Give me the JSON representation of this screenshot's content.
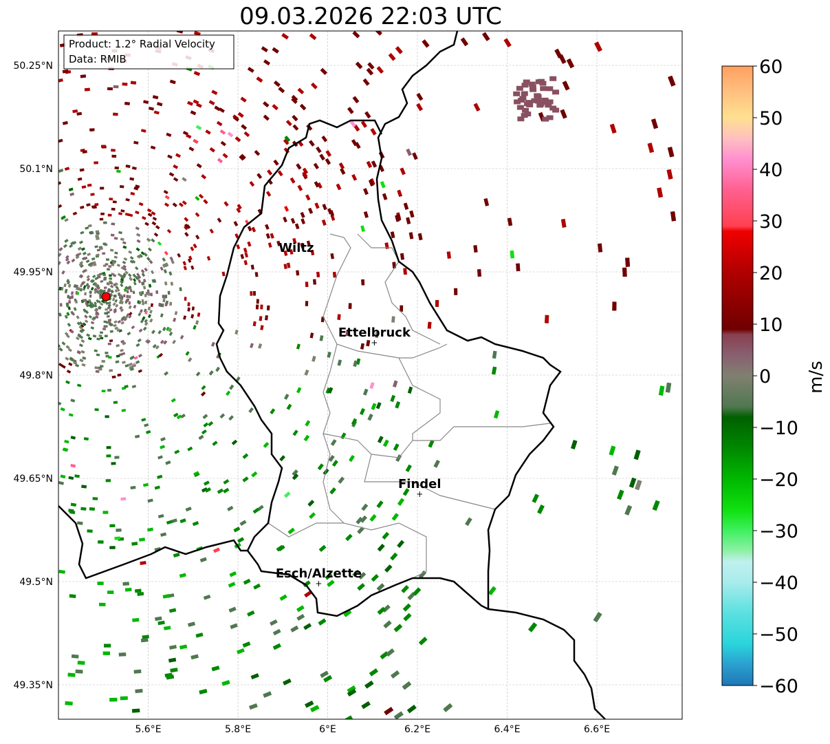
{
  "title": "09.03.2026 22:03 UTC",
  "info_box": {
    "product": "Product: 1.2° Radial Velocity",
    "source": "Data: RMIB"
  },
  "axes": {
    "lon_range": [
      5.4,
      6.79
    ],
    "lat_range": [
      49.3,
      50.3
    ],
    "x_ticks": [
      {
        "v": 5.6,
        "label": "5.6°E"
      },
      {
        "v": 5.8,
        "label": "5.8°E"
      },
      {
        "v": 6.0,
        "label": "6°E"
      },
      {
        "v": 6.2,
        "label": "6.2°E"
      },
      {
        "v": 6.4,
        "label": "6.4°E"
      },
      {
        "v": 6.6,
        "label": "6.6°E"
      }
    ],
    "y_ticks": [
      {
        "v": 50.25,
        "label": "50.25°N"
      },
      {
        "v": 50.1,
        "label": "50.1°N"
      },
      {
        "v": 49.95,
        "label": "49.95°N"
      },
      {
        "v": 49.8,
        "label": "49.8°N"
      },
      {
        "v": 49.65,
        "label": "49.65°N"
      },
      {
        "v": 49.5,
        "label": "49.5°N"
      },
      {
        "v": 49.35,
        "label": "49.35°N"
      }
    ]
  },
  "radar_site": {
    "lon": 5.506,
    "lat": 49.914,
    "color": "#ff0000"
  },
  "cities": [
    {
      "name": "Wiltz",
      "lon": 5.93,
      "lat": 49.97,
      "marker": false
    },
    {
      "name": "Ettelbruck",
      "lon": 6.104,
      "lat": 49.847,
      "marker": true
    },
    {
      "name": "Findel",
      "lon": 6.205,
      "lat": 49.627,
      "marker": true
    },
    {
      "name": "Esch/Alzette",
      "lon": 5.98,
      "lat": 49.497,
      "marker": true
    }
  ],
  "colorbar": {
    "label": "m/s",
    "range": [
      -60,
      60
    ],
    "ticks": [
      {
        "v": 60,
        "label": "60"
      },
      {
        "v": 50,
        "label": "50"
      },
      {
        "v": 40,
        "label": "40"
      },
      {
        "v": 30,
        "label": "30"
      },
      {
        "v": 20,
        "label": "20"
      },
      {
        "v": 10,
        "label": "10"
      },
      {
        "v": 0,
        "label": "0"
      },
      {
        "v": -10,
        "label": "−10"
      },
      {
        "v": -20,
        "label": "−20"
      },
      {
        "v": -30,
        "label": "−30"
      },
      {
        "v": -40,
        "label": "−40"
      },
      {
        "v": -50,
        "label": "−50"
      },
      {
        "v": -60,
        "label": "−60"
      }
    ],
    "stops": [
      {
        "v": -60,
        "c": "#1f77b4"
      },
      {
        "v": -56,
        "c": "#2a9fd0"
      },
      {
        "v": -52,
        "c": "#2ad4dc"
      },
      {
        "v": -46,
        "c": "#5ae0e0"
      },
      {
        "v": -40,
        "c": "#a8ecec"
      },
      {
        "v": -36,
        "c": "#c0f0ee"
      },
      {
        "v": -34,
        "c": "#90f0a8"
      },
      {
        "v": -30,
        "c": "#40f060"
      },
      {
        "v": -26,
        "c": "#10e010"
      },
      {
        "v": -20,
        "c": "#00b800"
      },
      {
        "v": -14,
        "c": "#008800"
      },
      {
        "v": -8,
        "c": "#006000"
      },
      {
        "v": -6,
        "c": "#507850"
      },
      {
        "v": 0,
        "c": "#808070"
      },
      {
        "v": 4,
        "c": "#886070"
      },
      {
        "v": 8,
        "c": "#884050"
      },
      {
        "v": 9,
        "c": "#700000"
      },
      {
        "v": 20,
        "c": "#b00000"
      },
      {
        "v": 28,
        "c": "#f00000"
      },
      {
        "v": 29,
        "c": "#ff4050"
      },
      {
        "v": 36,
        "c": "#ff6090"
      },
      {
        "v": 42,
        "c": "#ff90d0"
      },
      {
        "v": 46,
        "c": "#ffc0c0"
      },
      {
        "v": 50,
        "c": "#ffe090"
      },
      {
        "v": 55,
        "c": "#ffc080"
      },
      {
        "v": 60,
        "c": "#ffa060"
      }
    ]
  }
}
